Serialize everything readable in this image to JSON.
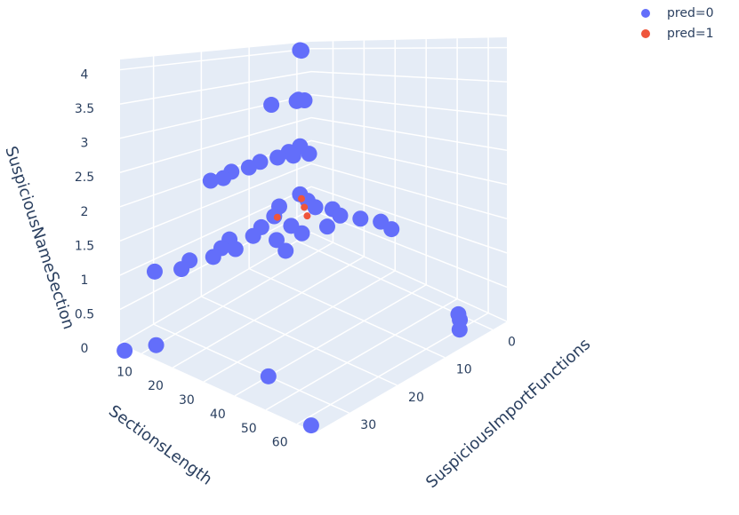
{
  "chart_data": {
    "type": "scatter3d",
    "x_label": "SectionsLength",
    "y_label": "SuspiciousImportFunctions",
    "z_label": "SuspiciousNameSection",
    "xlim": [
      3,
      66
    ],
    "ylim": [
      -3,
      37
    ],
    "zlim": [
      0,
      4.15
    ],
    "xticks": [
      10,
      20,
      30,
      40,
      50,
      60
    ],
    "yticks": [
      0,
      10,
      20,
      30
    ],
    "zticks": [
      0,
      0.5,
      1,
      1.5,
      2,
      2.5,
      3,
      3.5,
      4
    ],
    "grid": true,
    "legend_position": "top-right",
    "series": [
      {
        "name": "pred=0",
        "color": "#636efa",
        "x": [
          4,
          6,
          5,
          6,
          7,
          4,
          4,
          5,
          6,
          5,
          6,
          5,
          7,
          6,
          8,
          10,
          4,
          8,
          12,
          16,
          20,
          25,
          30,
          35,
          5,
          8,
          10,
          12,
          9,
          11,
          13,
          10,
          12,
          14,
          18,
          20,
          22,
          15,
          24,
          8,
          55,
          57,
          6,
          40,
          63,
          60,
          10
        ],
        "y": [
          0,
          1,
          1,
          2,
          1,
          6,
          0,
          3,
          6,
          9,
          12,
          15,
          18,
          20,
          4,
          2,
          0,
          1,
          2,
          1,
          2,
          1,
          0,
          1,
          5,
          8,
          12,
          15,
          18,
          21,
          24,
          27,
          30,
          20,
          14,
          10,
          6,
          9,
          16,
          33,
          0,
          1,
          38,
          30,
          36,
          3,
          34
        ],
        "z": [
          4,
          4,
          3,
          3,
          3,
          3,
          2,
          2,
          2,
          2,
          2,
          2,
          2,
          2,
          2,
          2,
          1,
          1,
          1,
          1,
          1,
          1,
          1,
          1,
          1,
          1,
          1,
          1,
          1,
          1,
          1,
          1,
          1,
          1,
          1,
          1,
          1,
          1,
          1,
          1,
          0,
          0,
          0,
          0,
          0,
          0,
          0
        ]
      },
      {
        "name": "pred=1",
        "color": "#ef553b",
        "x": [
          6,
          10,
          14,
          9
        ],
        "y": [
          1,
          3,
          5,
          8
        ],
        "z": [
          1,
          1,
          1,
          1
        ]
      }
    ]
  }
}
